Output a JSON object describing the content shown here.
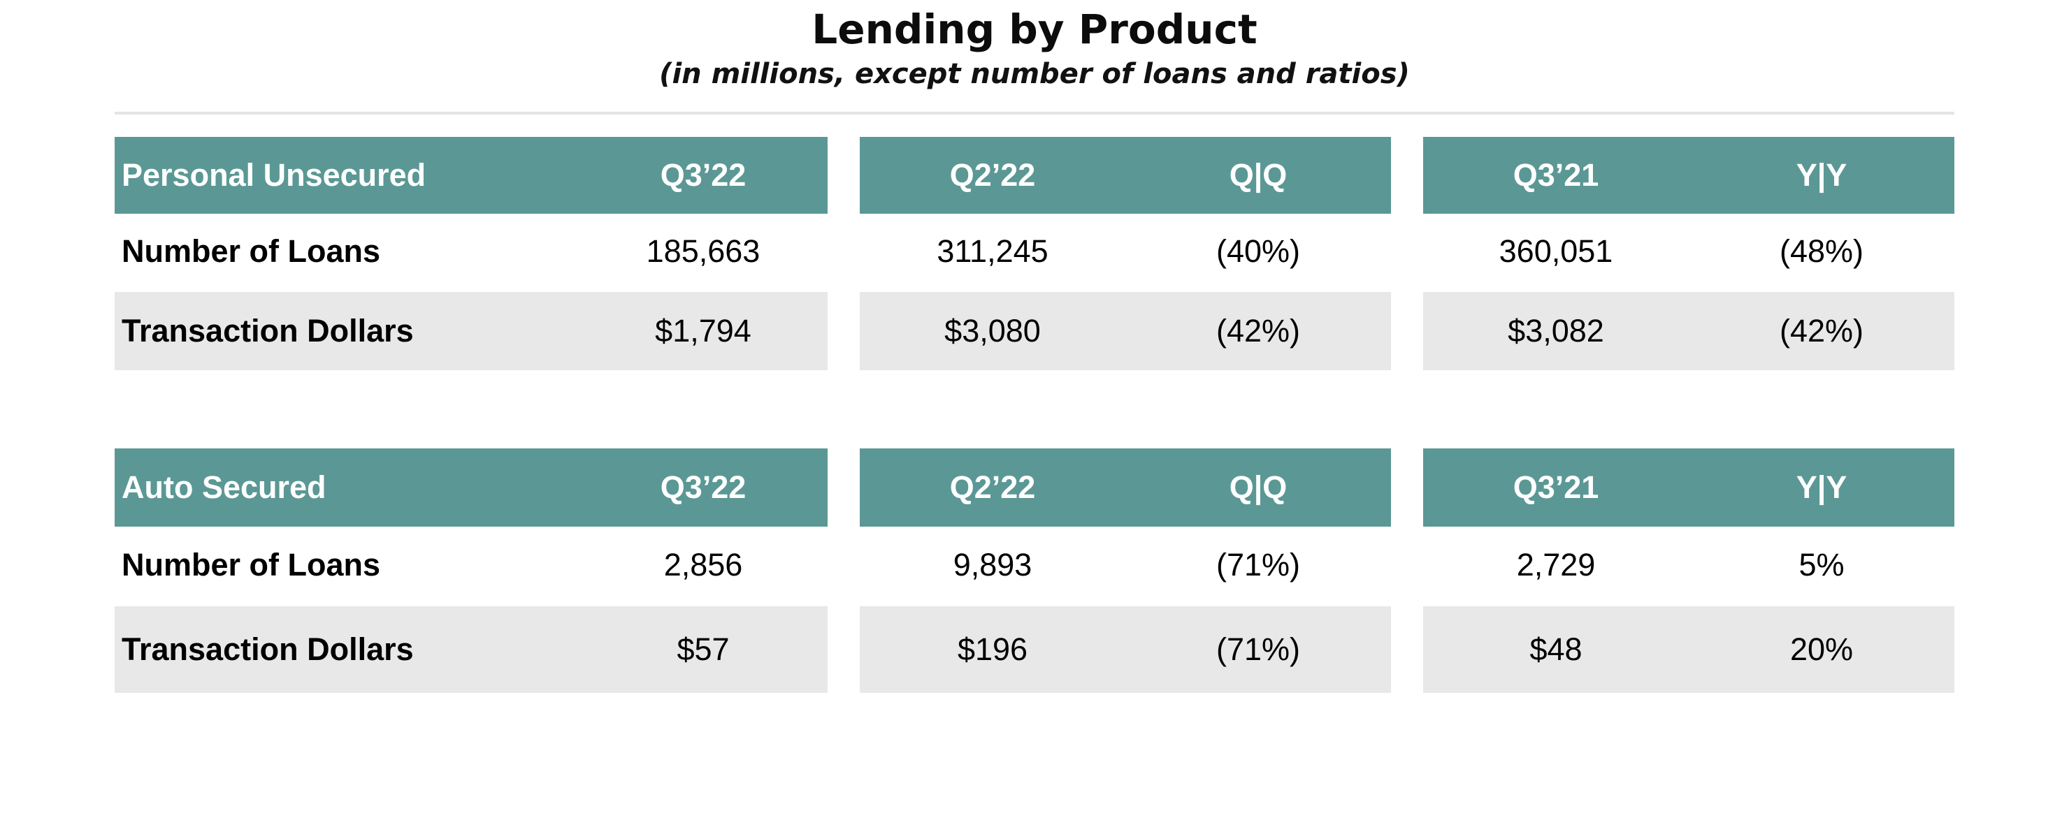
{
  "page": {
    "title": "Lending by Product",
    "subtitle": "(in millions, except number of loans and ratios)"
  },
  "colors": {
    "header_bg": "#5b9895",
    "header_text": "#ffffff",
    "shaded_row": "#e8e8e8"
  },
  "tables": [
    {
      "product": "Personal Unsecured",
      "columns": [
        "Q3’22",
        "Q2’22",
        "Q|Q",
        "Q3’21",
        "Y|Y"
      ],
      "rows": [
        {
          "label": "Number of Loans",
          "values": [
            "185,663",
            "311,245",
            "(40%)",
            "360,051",
            "(48%)"
          ]
        },
        {
          "label": "Transaction Dollars",
          "values": [
            "$1,794",
            "$3,080",
            "(42%)",
            "$3,082",
            "(42%)"
          ]
        }
      ]
    },
    {
      "product": "Auto Secured",
      "columns": [
        "Q3’22",
        "Q2’22",
        "Q|Q",
        "Q3’21",
        "Y|Y"
      ],
      "rows": [
        {
          "label": "Number of Loans",
          "values": [
            "2,856",
            "9,893",
            "(71%)",
            "2,729",
            "5%"
          ]
        },
        {
          "label": "Transaction Dollars",
          "values": [
            "$57",
            "$196",
            "(71%)",
            "$48",
            "20%"
          ]
        }
      ]
    }
  ]
}
